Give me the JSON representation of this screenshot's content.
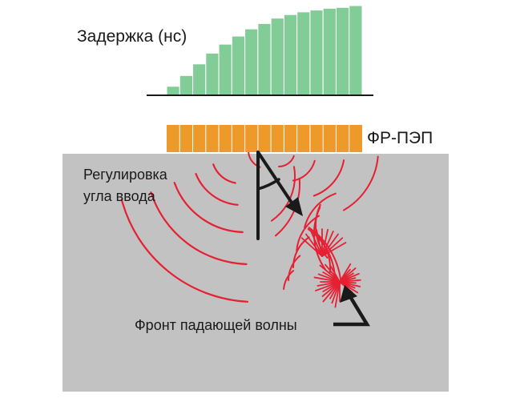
{
  "labels": {
    "delay": "Задержка (нс)",
    "probe": "ФР-ПЭП",
    "steering_line1": "Регулировка",
    "steering_line2": "угла ввода",
    "wavefront": "Фронт падающей волны"
  },
  "delay_profile": {
    "relative_delays": [
      0.1,
      0.22,
      0.35,
      0.47,
      0.57,
      0.66,
      0.74,
      0.8,
      0.86,
      0.9,
      0.93,
      0.95,
      0.97,
      0.98,
      1.0
    ]
  },
  "probe": {
    "element_count": 15
  },
  "colors": {
    "delay_bars": "#82cc98",
    "probe": "#ee9a2b",
    "test_material": "#c2c2c2",
    "wave_lines": "#e62032",
    "arrows": "#1a1a1a",
    "text": "#1a1a1a"
  }
}
